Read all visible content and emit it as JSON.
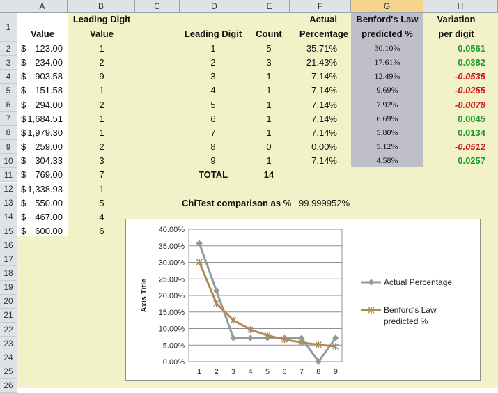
{
  "columns": [
    "A",
    "B",
    "C",
    "D",
    "E",
    "F",
    "G",
    "H"
  ],
  "selected_column": "G",
  "rows": [
    "1",
    "2",
    "3",
    "4",
    "5",
    "6",
    "7",
    "8",
    "9",
    "10",
    "11",
    "12",
    "13",
    "14",
    "15",
    "16",
    "17",
    "18",
    "19",
    "20",
    "21",
    "22",
    "23",
    "24",
    "25",
    "26"
  ],
  "headers": {
    "value": "Value",
    "leading_digit_line1": "Leading Digit",
    "leading_digit_line2": "Value",
    "leading_digit": "Leading Digit",
    "count": "Count",
    "actual_line1": "Actual",
    "actual_line2": "Percentage",
    "benford_line1": "Benford's Law",
    "benford_line2": "predicted %",
    "variation_line1": "Variation",
    "variation_line2": "per digit"
  },
  "values": [
    {
      "cur": "$",
      "amt": "123.00",
      "lead": "1"
    },
    {
      "cur": "$",
      "amt": "234.00",
      "lead": "2"
    },
    {
      "cur": "$",
      "amt": "903.58",
      "lead": "9"
    },
    {
      "cur": "$",
      "amt": "151.58",
      "lead": "1"
    },
    {
      "cur": "$",
      "amt": "294.00",
      "lead": "2"
    },
    {
      "cur": "$",
      "amt": "1,684.51",
      "lead": "1"
    },
    {
      "cur": "$",
      "amt": "1,979.30",
      "lead": "1"
    },
    {
      "cur": "$",
      "amt": "259.00",
      "lead": "2"
    },
    {
      "cur": "$",
      "amt": "304.33",
      "lead": "3"
    },
    {
      "cur": "$",
      "amt": "769.00",
      "lead": "7"
    },
    {
      "cur": "$",
      "amt": "1,338.93",
      "lead": "1"
    },
    {
      "cur": "$",
      "amt": "550.00",
      "lead": "5"
    },
    {
      "cur": "$",
      "amt": "467.00",
      "lead": "4"
    },
    {
      "cur": "$",
      "amt": "600.00",
      "lead": "6"
    }
  ],
  "digits": [
    {
      "d": "1",
      "count": "5",
      "actual": "35.71%",
      "benford": "30.10%",
      "var": "0.0561",
      "neg": false
    },
    {
      "d": "2",
      "count": "3",
      "actual": "21.43%",
      "benford": "17.61%",
      "var": "0.0382",
      "neg": false
    },
    {
      "d": "3",
      "count": "1",
      "actual": "7.14%",
      "benford": "12.49%",
      "var": "-0.0535",
      "neg": true
    },
    {
      "d": "4",
      "count": "1",
      "actual": "7.14%",
      "benford": "9.69%",
      "var": "-0.0255",
      "neg": true
    },
    {
      "d": "5",
      "count": "1",
      "actual": "7.14%",
      "benford": "7.92%",
      "var": "-0.0078",
      "neg": true
    },
    {
      "d": "6",
      "count": "1",
      "actual": "7.14%",
      "benford": "6.69%",
      "var": "0.0045",
      "neg": false
    },
    {
      "d": "7",
      "count": "1",
      "actual": "7.14%",
      "benford": "5.80%",
      "var": "0.0134",
      "neg": false
    },
    {
      "d": "8",
      "count": "0",
      "actual": "0.00%",
      "benford": "5.12%",
      "var": "-0.0512",
      "neg": true
    },
    {
      "d": "9",
      "count": "1",
      "actual": "7.14%",
      "benford": "4.58%",
      "var": "0.0257",
      "neg": false
    }
  ],
  "total_label": "TOTAL",
  "total_value": "14",
  "chitest_label": "ChiTest comparison as %",
  "chitest_value": "99.999952%",
  "colors": {
    "actual_series": "#8e9c9c",
    "benford_series": "#b08a58",
    "positive": "#1f9a2a",
    "negative": "#d11a1a"
  },
  "chart_data": {
    "type": "line",
    "x": [
      1,
      2,
      3,
      4,
      5,
      6,
      7,
      8,
      9
    ],
    "ylabel": "Axis Title",
    "ylim": [
      0,
      40
    ],
    "yticks": [
      "0.00%",
      "5.00%",
      "10.00%",
      "15.00%",
      "20.00%",
      "25.00%",
      "30.00%",
      "35.00%",
      "40.00%"
    ],
    "legend_position": "right",
    "series": [
      {
        "name": "Actual Percentage",
        "values": [
          35.71,
          21.43,
          7.14,
          7.14,
          7.14,
          7.14,
          7.14,
          0.0,
          7.14
        ],
        "marker": "diamond"
      },
      {
        "name": "Benford's Law predicted %",
        "values": [
          30.1,
          17.61,
          12.49,
          9.69,
          7.92,
          6.69,
          5.8,
          5.12,
          4.58
        ],
        "marker": "star"
      }
    ]
  }
}
